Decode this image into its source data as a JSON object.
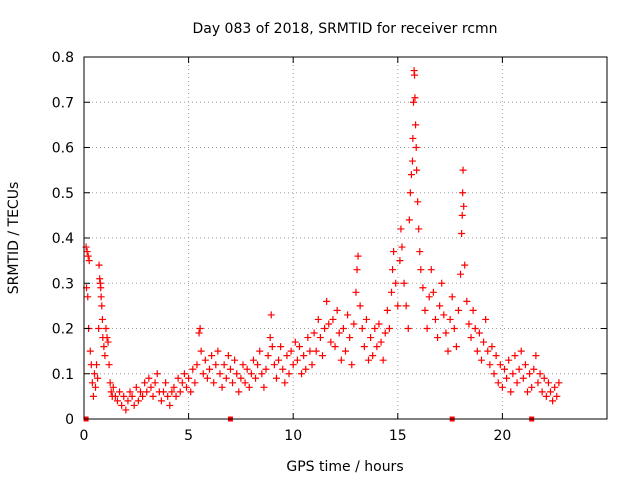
{
  "chart_data": {
    "type": "scatter",
    "title": "Day 083 of 2018, SRMTID for receiver rcmn",
    "xlabel": "GPS time / hours",
    "ylabel": "SRMTID / TECUs",
    "xlim": [
      0,
      25
    ],
    "ylim": [
      0,
      0.8
    ],
    "xticks": [
      0,
      5,
      10,
      15,
      20
    ],
    "yticks": [
      0,
      0.1,
      0.2,
      0.3,
      0.4,
      0.5,
      0.6,
      0.7,
      0.8
    ],
    "xtick_labels": [
      "0",
      "5",
      "10",
      "15",
      "20"
    ],
    "ytick_labels": [
      "0",
      "0.1",
      "0.2",
      "0.3",
      "0.4",
      "0.5",
      "0.6",
      "0.7",
      "0.8"
    ],
    "grid": true,
    "marker": "+",
    "color": "#ff0000",
    "series": [
      {
        "name": "SRMTID",
        "points": [
          [
            0.1,
            0.38
          ],
          [
            0.15,
            0.37
          ],
          [
            0.2,
            0.36
          ],
          [
            0.25,
            0.35
          ],
          [
            0.12,
            0.29
          ],
          [
            0.18,
            0.27
          ],
          [
            0.22,
            0.2
          ],
          [
            0.3,
            0.15
          ],
          [
            0.35,
            0.12
          ],
          [
            0.4,
            0.08
          ],
          [
            0.45,
            0.05
          ],
          [
            0.5,
            0.1
          ],
          [
            0.55,
            0.07
          ],
          [
            0.6,
            0.12
          ],
          [
            0.65,
            0.09
          ],
          [
            0.7,
            0.2
          ],
          [
            0.72,
            0.34
          ],
          [
            0.75,
            0.31
          ],
          [
            0.78,
            0.3
          ],
          [
            0.8,
            0.29
          ],
          [
            0.82,
            0.27
          ],
          [
            0.85,
            0.25
          ],
          [
            0.88,
            0.22
          ],
          [
            0.9,
            0.18
          ],
          [
            0.95,
            0.16
          ],
          [
            1.0,
            0.14
          ],
          [
            1.05,
            0.2
          ],
          [
            1.1,
            0.18
          ],
          [
            1.15,
            0.17
          ],
          [
            1.2,
            0.12
          ],
          [
            1.25,
            0.08
          ],
          [
            1.3,
            0.06
          ],
          [
            1.35,
            0.05
          ],
          [
            1.4,
            0.07
          ],
          [
            1.5,
            0.05
          ],
          [
            1.6,
            0.04
          ],
          [
            1.7,
            0.06
          ],
          [
            1.8,
            0.03
          ],
          [
            1.9,
            0.05
          ],
          [
            2.0,
            0.02
          ],
          [
            2.1,
            0.04
          ],
          [
            2.2,
            0.06
          ],
          [
            2.3,
            0.05
          ],
          [
            2.4,
            0.03
          ],
          [
            2.5,
            0.07
          ],
          [
            2.6,
            0.04
          ],
          [
            2.7,
            0.06
          ],
          [
            2.8,
            0.05
          ],
          [
            2.9,
            0.08
          ],
          [
            3.0,
            0.06
          ],
          [
            3.1,
            0.09
          ],
          [
            3.2,
            0.07
          ],
          [
            3.3,
            0.05
          ],
          [
            3.4,
            0.08
          ],
          [
            3.5,
            0.1
          ],
          [
            3.6,
            0.06
          ],
          [
            3.7,
            0.04
          ],
          [
            3.8,
            0.06
          ],
          [
            3.9,
            0.08
          ],
          [
            4.0,
            0.05
          ],
          [
            4.1,
            0.03
          ],
          [
            4.2,
            0.06
          ],
          [
            4.3,
            0.07
          ],
          [
            4.4,
            0.05
          ],
          [
            4.5,
            0.09
          ],
          [
            4.6,
            0.06
          ],
          [
            4.7,
            0.08
          ],
          [
            4.8,
            0.1
          ],
          [
            4.9,
            0.07
          ],
          [
            5.0,
            0.09
          ],
          [
            5.1,
            0.06
          ],
          [
            5.2,
            0.11
          ],
          [
            5.3,
            0.08
          ],
          [
            5.4,
            0.12
          ],
          [
            5.5,
            0.19
          ],
          [
            5.55,
            0.2
          ],
          [
            5.6,
            0.15
          ],
          [
            5.7,
            0.1
          ],
          [
            5.8,
            0.13
          ],
          [
            5.9,
            0.09
          ],
          [
            6.0,
            0.11
          ],
          [
            6.1,
            0.14
          ],
          [
            6.2,
            0.08
          ],
          [
            6.3,
            0.12
          ],
          [
            6.4,
            0.15
          ],
          [
            6.5,
            0.1
          ],
          [
            6.6,
            0.07
          ],
          [
            6.7,
            0.12
          ],
          [
            6.8,
            0.09
          ],
          [
            6.9,
            0.14
          ],
          [
            7.0,
            0.11
          ],
          [
            7.1,
            0.08
          ],
          [
            7.2,
            0.13
          ],
          [
            7.3,
            0.1
          ],
          [
            7.4,
            0.06
          ],
          [
            7.5,
            0.09
          ],
          [
            7.6,
            0.12
          ],
          [
            7.7,
            0.08
          ],
          [
            7.8,
            0.11
          ],
          [
            7.9,
            0.07
          ],
          [
            8.0,
            0.1
          ],
          [
            8.1,
            0.13
          ],
          [
            8.2,
            0.09
          ],
          [
            8.3,
            0.12
          ],
          [
            8.4,
            0.15
          ],
          [
            8.5,
            0.1
          ],
          [
            8.6,
            0.07
          ],
          [
            8.7,
            0.11
          ],
          [
            8.8,
            0.14
          ],
          [
            8.9,
            0.18
          ],
          [
            8.95,
            0.23
          ],
          [
            9.0,
            0.16
          ],
          [
            9.1,
            0.12
          ],
          [
            9.2,
            0.09
          ],
          [
            9.3,
            0.13
          ],
          [
            9.4,
            0.16
          ],
          [
            9.5,
            0.11
          ],
          [
            9.6,
            0.08
          ],
          [
            9.7,
            0.14
          ],
          [
            9.8,
            0.1
          ],
          [
            9.9,
            0.15
          ],
          [
            10.0,
            0.12
          ],
          [
            10.1,
            0.17
          ],
          [
            10.2,
            0.13
          ],
          [
            10.3,
            0.16
          ],
          [
            10.4,
            0.1
          ],
          [
            10.5,
            0.14
          ],
          [
            10.6,
            0.11
          ],
          [
            10.7,
            0.18
          ],
          [
            10.8,
            0.15
          ],
          [
            10.9,
            0.12
          ],
          [
            11.0,
            0.19
          ],
          [
            11.1,
            0.15
          ],
          [
            11.2,
            0.22
          ],
          [
            11.3,
            0.18
          ],
          [
            11.4,
            0.14
          ],
          [
            11.5,
            0.2
          ],
          [
            11.6,
            0.26
          ],
          [
            11.7,
            0.21
          ],
          [
            11.8,
            0.17
          ],
          [
            11.9,
            0.22
          ],
          [
            12.0,
            0.16
          ],
          [
            12.1,
            0.24
          ],
          [
            12.2,
            0.19
          ],
          [
            12.3,
            0.13
          ],
          [
            12.4,
            0.2
          ],
          [
            12.5,
            0.15
          ],
          [
            12.6,
            0.23
          ],
          [
            12.7,
            0.18
          ],
          [
            12.8,
            0.12
          ],
          [
            12.9,
            0.21
          ],
          [
            13.0,
            0.28
          ],
          [
            13.05,
            0.33
          ],
          [
            13.1,
            0.36
          ],
          [
            13.2,
            0.25
          ],
          [
            13.3,
            0.2
          ],
          [
            13.4,
            0.16
          ],
          [
            13.5,
            0.22
          ],
          [
            13.6,
            0.13
          ],
          [
            13.7,
            0.18
          ],
          [
            13.8,
            0.14
          ],
          [
            13.9,
            0.2
          ],
          [
            14.0,
            0.16
          ],
          [
            14.1,
            0.21
          ],
          [
            14.2,
            0.17
          ],
          [
            14.3,
            0.13
          ],
          [
            14.4,
            0.19
          ],
          [
            14.5,
            0.24
          ],
          [
            14.6,
            0.2
          ],
          [
            14.7,
            0.28
          ],
          [
            14.75,
            0.33
          ],
          [
            14.8,
            0.37
          ],
          [
            14.9,
            0.3
          ],
          [
            15.0,
            0.25
          ],
          [
            15.1,
            0.35
          ],
          [
            15.15,
            0.42
          ],
          [
            15.2,
            0.38
          ],
          [
            15.3,
            0.3
          ],
          [
            15.4,
            0.25
          ],
          [
            15.5,
            0.2
          ],
          [
            15.55,
            0.44
          ],
          [
            15.6,
            0.5
          ],
          [
            15.65,
            0.54
          ],
          [
            15.7,
            0.57
          ],
          [
            15.72,
            0.62
          ],
          [
            15.75,
            0.7
          ],
          [
            15.78,
            0.77
          ],
          [
            15.8,
            0.76
          ],
          [
            15.82,
            0.71
          ],
          [
            15.85,
            0.65
          ],
          [
            15.88,
            0.6
          ],
          [
            15.9,
            0.55
          ],
          [
            15.95,
            0.48
          ],
          [
            16.0,
            0.42
          ],
          [
            16.05,
            0.37
          ],
          [
            16.1,
            0.33
          ],
          [
            16.2,
            0.29
          ],
          [
            16.3,
            0.24
          ],
          [
            16.4,
            0.2
          ],
          [
            16.5,
            0.27
          ],
          [
            16.6,
            0.33
          ],
          [
            16.7,
            0.28
          ],
          [
            16.8,
            0.22
          ],
          [
            16.9,
            0.18
          ],
          [
            17.0,
            0.25
          ],
          [
            17.1,
            0.3
          ],
          [
            17.2,
            0.23
          ],
          [
            17.3,
            0.19
          ],
          [
            17.4,
            0.15
          ],
          [
            17.5,
            0.22
          ],
          [
            17.6,
            0.27
          ],
          [
            17.7,
            0.2
          ],
          [
            17.8,
            0.16
          ],
          [
            17.9,
            0.24
          ],
          [
            18.0,
            0.32
          ],
          [
            18.05,
            0.41
          ],
          [
            18.08,
            0.45
          ],
          [
            18.1,
            0.5
          ],
          [
            18.12,
            0.55
          ],
          [
            18.15,
            0.47
          ],
          [
            18.2,
            0.34
          ],
          [
            18.3,
            0.26
          ],
          [
            18.4,
            0.21
          ],
          [
            18.5,
            0.18
          ],
          [
            18.6,
            0.24
          ],
          [
            18.7,
            0.2
          ],
          [
            18.8,
            0.15
          ],
          [
            18.9,
            0.19
          ],
          [
            19.0,
            0.13
          ],
          [
            19.1,
            0.17
          ],
          [
            19.2,
            0.22
          ],
          [
            19.3,
            0.15
          ],
          [
            19.4,
            0.12
          ],
          [
            19.5,
            0.16
          ],
          [
            19.6,
            0.1
          ],
          [
            19.7,
            0.14
          ],
          [
            19.8,
            0.08
          ],
          [
            19.9,
            0.12
          ],
          [
            20.0,
            0.07
          ],
          [
            20.1,
            0.11
          ],
          [
            20.2,
            0.09
          ],
          [
            20.3,
            0.13
          ],
          [
            20.4,
            0.06
          ],
          [
            20.5,
            0.1
          ],
          [
            20.6,
            0.14
          ],
          [
            20.7,
            0.08
          ],
          [
            20.8,
            0.11
          ],
          [
            20.9,
            0.15
          ],
          [
            21.0,
            0.09
          ],
          [
            21.1,
            0.12
          ],
          [
            21.2,
            0.06
          ],
          [
            21.3,
            0.1
          ],
          [
            21.4,
            0.07
          ],
          [
            21.5,
            0.11
          ],
          [
            21.6,
            0.14
          ],
          [
            21.7,
            0.08
          ],
          [
            21.8,
            0.1
          ],
          [
            21.9,
            0.06
          ],
          [
            22.0,
            0.09
          ],
          [
            22.1,
            0.05
          ],
          [
            22.2,
            0.08
          ],
          [
            22.3,
            0.06
          ],
          [
            22.4,
            0.04
          ],
          [
            22.5,
            0.07
          ],
          [
            22.6,
            0.05
          ],
          [
            22.7,
            0.08
          ]
        ]
      }
    ],
    "baseline_markers": [
      0.1,
      7.0,
      17.6,
      21.4
    ]
  }
}
